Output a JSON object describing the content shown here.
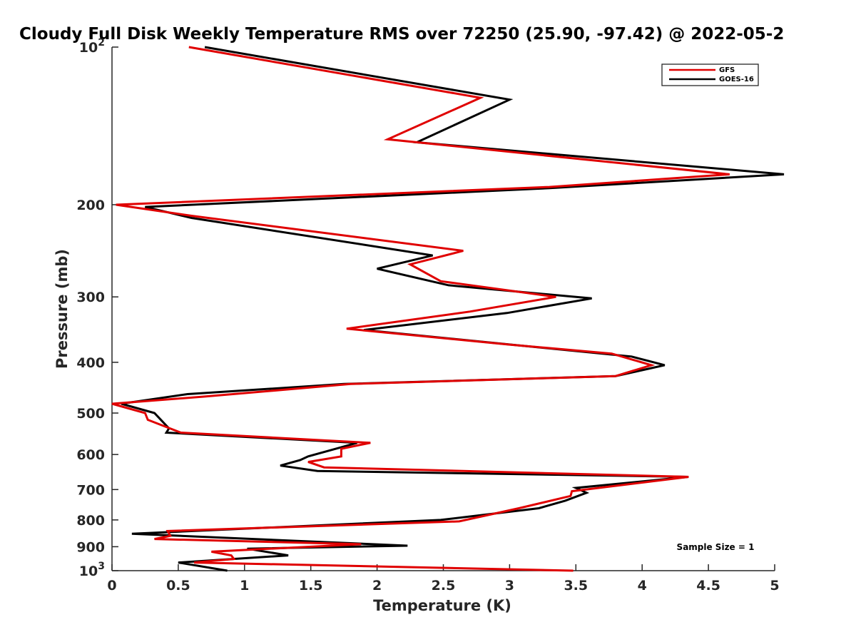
{
  "chart_data": {
    "type": "line",
    "title": "Cloudy Full Disk Weekly Temperature RMS over 72250 (25.90, -97.42) @ 2022-05-2",
    "xlabel": "Temperature (K)",
    "ylabel": "Pressure (mb)",
    "xlim": [
      0,
      5
    ],
    "ylim": [
      100,
      1000
    ],
    "y_scale": "log",
    "y_direction": "reverse",
    "grid": false,
    "legend_position": "top-right",
    "x_ticks": [
      "0",
      "0.5",
      "1",
      "1.5",
      "2",
      "2.5",
      "3",
      "3.5",
      "4",
      "4.5",
      "5"
    ],
    "y_ticks": [
      {
        "value": 100,
        "base": "10",
        "exp": "2"
      },
      {
        "value": 200,
        "label": "200"
      },
      {
        "value": 300,
        "label": "300"
      },
      {
        "value": 400,
        "label": "400"
      },
      {
        "value": 500,
        "label": "500"
      },
      {
        "value": 600,
        "label": "600"
      },
      {
        "value": 700,
        "label": "700"
      },
      {
        "value": 800,
        "label": "800"
      },
      {
        "value": 900,
        "label": "900"
      },
      {
        "value": 1000,
        "base": "10",
        "exp": "3"
      }
    ],
    "annotation": "Sample Size = 1",
    "series": [
      {
        "name": "GFS",
        "color": "#e00000",
        "points": [
          [
            0.58,
            100
          ],
          [
            2.78,
            125
          ],
          [
            2.08,
            150
          ],
          [
            4.66,
            175
          ],
          [
            3.3,
            185
          ],
          [
            0.03,
            200
          ],
          [
            0.6,
            210
          ],
          [
            2.65,
            245
          ],
          [
            2.25,
            260
          ],
          [
            2.48,
            280
          ],
          [
            3.35,
            300
          ],
          [
            2.7,
            320
          ],
          [
            1.77,
            345
          ],
          [
            3.0,
            370
          ],
          [
            3.77,
            385
          ],
          [
            4.07,
            405
          ],
          [
            3.8,
            425
          ],
          [
            1.8,
            440
          ],
          [
            0.7,
            465
          ],
          [
            0.0,
            480
          ],
          [
            0.25,
            500
          ],
          [
            0.27,
            515
          ],
          [
            0.52,
            545
          ],
          [
            1.95,
            570
          ],
          [
            1.73,
            585
          ],
          [
            1.73,
            605
          ],
          [
            1.48,
            620
          ],
          [
            1.6,
            635
          ],
          [
            4.35,
            662
          ],
          [
            3.47,
            705
          ],
          [
            3.46,
            720
          ],
          [
            3.07,
            760
          ],
          [
            2.62,
            805
          ],
          [
            0.42,
            840
          ],
          [
            0.44,
            858
          ],
          [
            0.32,
            870
          ],
          [
            1.88,
            890
          ],
          [
            1.3,
            905
          ],
          [
            0.75,
            920
          ],
          [
            0.9,
            935
          ],
          [
            0.92,
            950
          ],
          [
            0.62,
            965
          ],
          [
            3.48,
            1000
          ]
        ]
      },
      {
        "name": "GOES-16",
        "color": "#000000",
        "points": [
          [
            0.7,
            100
          ],
          [
            3.0,
            126
          ],
          [
            2.3,
            152
          ],
          [
            5.07,
            175
          ],
          [
            3.3,
            186
          ],
          [
            0.25,
            202
          ],
          [
            0.6,
            212
          ],
          [
            2.42,
            250
          ],
          [
            2.0,
            265
          ],
          [
            2.54,
            285
          ],
          [
            3.62,
            302
          ],
          [
            2.98,
            322
          ],
          [
            1.9,
            347
          ],
          [
            2.87,
            367
          ],
          [
            3.92,
            390
          ],
          [
            4.17,
            405
          ],
          [
            3.8,
            425
          ],
          [
            1.75,
            440
          ],
          [
            0.57,
            460
          ],
          [
            0.07,
            480
          ],
          [
            0.32,
            500
          ],
          [
            0.43,
            535
          ],
          [
            0.41,
            545
          ],
          [
            1.85,
            570
          ],
          [
            1.48,
            605
          ],
          [
            1.42,
            615
          ],
          [
            1.27,
            630
          ],
          [
            1.55,
            645
          ],
          [
            4.35,
            662
          ],
          [
            3.5,
            695
          ],
          [
            3.58,
            710
          ],
          [
            3.42,
            735
          ],
          [
            3.22,
            760
          ],
          [
            2.48,
            800
          ],
          [
            0.15,
            850
          ],
          [
            2.23,
            896
          ],
          [
            1.02,
            908
          ],
          [
            1.33,
            935
          ],
          [
            0.5,
            965
          ],
          [
            0.87,
            1000
          ]
        ]
      }
    ]
  }
}
